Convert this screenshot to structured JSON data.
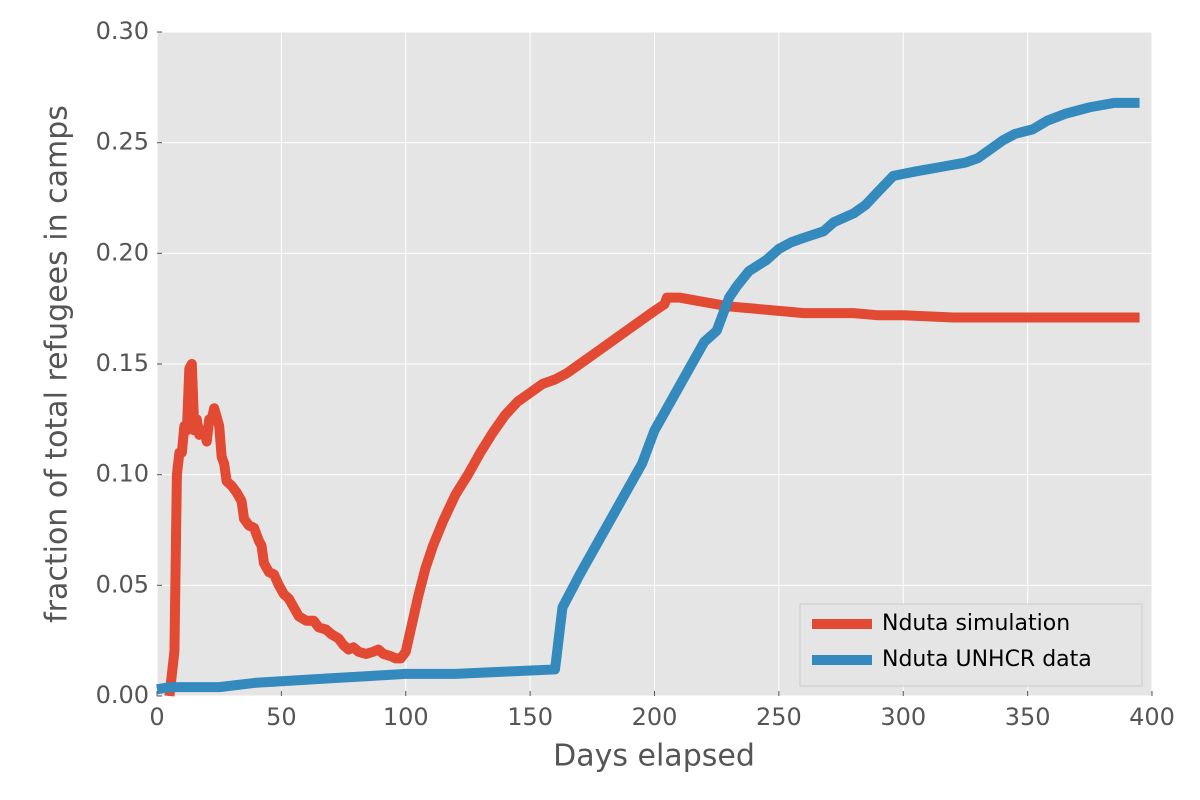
{
  "chart_data": {
    "type": "line",
    "xlabel": "Days elapsed",
    "ylabel": "fraction of total refugees in camps",
    "xlim": [
      0,
      400
    ],
    "ylim": [
      0,
      0.3
    ],
    "xticks": [
      0,
      50,
      100,
      150,
      200,
      250,
      300,
      350,
      400
    ],
    "yticks": [
      {
        "value": 0,
        "label": "0.00"
      },
      {
        "value": 0.05,
        "label": "0.05"
      },
      {
        "value": 0.1,
        "label": "0.10"
      },
      {
        "value": 0.15,
        "label": "0.15"
      },
      {
        "value": 0.2,
        "label": "0.20"
      },
      {
        "value": 0.25,
        "label": "0.25"
      },
      {
        "value": 0.3,
        "label": "0.30"
      }
    ],
    "grid": true,
    "legend": "lower right",
    "series": [
      {
        "name": "Nduta simulation",
        "color": "#e24a33",
        "x": [
          5,
          7,
          8,
          9,
          10,
          11,
          12,
          13,
          14,
          15,
          16,
          17,
          19,
          20,
          21,
          22,
          23,
          25,
          26,
          27,
          28,
          30,
          32,
          34,
          35,
          37,
          39,
          41,
          42,
          43,
          45,
          47,
          49,
          51,
          53,
          55,
          57,
          60,
          63,
          65,
          68,
          70,
          73,
          75,
          77,
          79,
          81,
          84,
          87,
          89,
          91,
          94,
          96,
          98,
          100,
          102,
          105,
          108,
          111,
          115,
          120,
          125,
          130,
          135,
          140,
          145,
          150,
          155,
          160,
          165,
          170,
          175,
          180,
          185,
          190,
          195,
          200,
          204,
          205,
          210,
          215,
          220,
          230,
          240,
          250,
          260,
          270,
          280,
          290,
          300,
          320,
          340,
          360,
          380,
          395
        ],
        "values": [
          0,
          0.02,
          0.1,
          0.11,
          0.11,
          0.122,
          0.12,
          0.148,
          0.15,
          0.12,
          0.125,
          0.118,
          0.12,
          0.115,
          0.125,
          0.125,
          0.13,
          0.122,
          0.108,
          0.105,
          0.097,
          0.095,
          0.092,
          0.088,
          0.08,
          0.077,
          0.076,
          0.07,
          0.068,
          0.06,
          0.056,
          0.055,
          0.05,
          0.046,
          0.044,
          0.04,
          0.036,
          0.034,
          0.034,
          0.031,
          0.03,
          0.028,
          0.026,
          0.023,
          0.021,
          0.022,
          0.02,
          0.019,
          0.02,
          0.021,
          0.019,
          0.018,
          0.017,
          0.017,
          0.02,
          0.03,
          0.045,
          0.058,
          0.068,
          0.079,
          0.091,
          0.1,
          0.11,
          0.119,
          0.127,
          0.133,
          0.137,
          0.141,
          0.143,
          0.146,
          0.15,
          0.154,
          0.158,
          0.162,
          0.166,
          0.17,
          0.174,
          0.177,
          0.18,
          0.18,
          0.179,
          0.178,
          0.176,
          0.175,
          0.174,
          0.173,
          0.173,
          0.173,
          0.172,
          0.172,
          0.171,
          0.171,
          0.171,
          0.171,
          0.171
        ]
      },
      {
        "name": "Nduta UNHCR data",
        "color": "#348abd",
        "x": [
          0,
          5,
          10,
          25,
          40,
          55,
          70,
          85,
          100,
          120,
          140,
          160,
          163,
          170,
          180,
          190,
          195,
          200,
          205,
          210,
          215,
          220,
          225,
          230,
          233,
          238,
          245,
          250,
          255,
          260,
          268,
          272,
          280,
          285,
          290,
          296,
          305,
          315,
          325,
          330,
          335,
          340,
          345,
          352,
          358,
          365,
          375,
          385,
          395
        ],
        "values": [
          0.003,
          0.004,
          0.004,
          0.004,
          0.006,
          0.007,
          0.008,
          0.009,
          0.01,
          0.01,
          0.011,
          0.012,
          0.04,
          0.055,
          0.075,
          0.095,
          0.105,
          0.12,
          0.13,
          0.14,
          0.15,
          0.16,
          0.165,
          0.18,
          0.185,
          0.192,
          0.197,
          0.202,
          0.205,
          0.207,
          0.21,
          0.214,
          0.218,
          0.222,
          0.228,
          0.235,
          0.237,
          0.239,
          0.241,
          0.243,
          0.247,
          0.251,
          0.254,
          0.256,
          0.26,
          0.263,
          0.266,
          0.268,
          0.268
        ]
      }
    ]
  }
}
